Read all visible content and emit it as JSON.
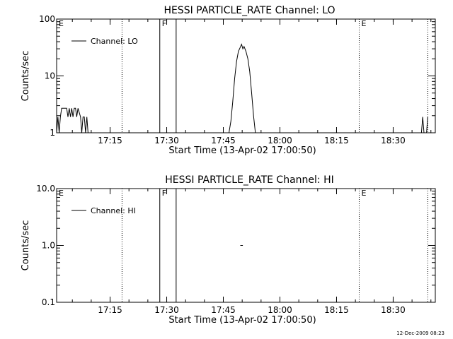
{
  "footer": {
    "stamp": "12-Dec-2009 08:23"
  },
  "chart_data": [
    {
      "type": "line",
      "title": "HESSI PARTICLE_RATE Channel: LO",
      "xlabel": "Start Time (13-Apr-02 17:00:50)",
      "ylabel": "Counts/sec",
      "y_scale": "log",
      "ylim": [
        1,
        100
      ],
      "xlim": [
        "17:00:50",
        "18:41:10"
      ],
      "x_ticks": [
        "17:15",
        "17:30",
        "17:45",
        "18:00",
        "18:15",
        "18:30"
      ],
      "y_ticks": [
        "1",
        "10",
        "100"
      ],
      "legend": {
        "label": "Channel: LO",
        "position": "top-left"
      },
      "markers": [
        {
          "time": "17:00:50",
          "style": "dotted",
          "label": "E"
        },
        {
          "time": "17:18:10",
          "style": "dotted",
          "label": ""
        },
        {
          "time": "17:28:10",
          "style": "solid",
          "label": "F"
        },
        {
          "time": "17:32:30",
          "style": "solid",
          "label": ""
        },
        {
          "time": "18:21:00",
          "style": "dotted",
          "label": "E"
        },
        {
          "time": "18:39:10",
          "style": "dotted",
          "label": ""
        }
      ],
      "series": [
        {
          "name": "Channel: LO",
          "segments": [
            [
              [
                "17:00:50",
                1.0
              ],
              [
                "17:01:10",
                1.9
              ],
              [
                "17:01:30",
                1.0
              ],
              [
                "17:01:50",
                1.9
              ],
              [
                "17:02:10",
                2.7
              ],
              [
                "17:03:30",
                2.7
              ],
              [
                "17:03:50",
                1.9
              ],
              [
                "17:04:10",
                2.7
              ],
              [
                "17:04:30",
                1.9
              ],
              [
                "17:04:50",
                2.7
              ],
              [
                "17:05:10",
                1.9
              ],
              [
                "17:05:30",
                2.7
              ],
              [
                "17:05:50",
                2.7
              ],
              [
                "17:06:10",
                1.9
              ],
              [
                "17:06:30",
                2.7
              ],
              [
                "17:07:10",
                1.9
              ],
              [
                "17:07:30",
                1.0
              ],
              [
                "17:07:50",
                1.9
              ],
              [
                "17:08:10",
                1.9
              ],
              [
                "17:08:30",
                1.0
              ],
              [
                "17:08:50",
                1.9
              ],
              [
                "17:09:10",
                1.0
              ]
            ],
            [
              [
                "17:46:30",
                1.0
              ],
              [
                "17:47:00",
                1.6
              ],
              [
                "17:47:30",
                3.5
              ],
              [
                "17:48:00",
                9.0
              ],
              [
                "17:48:30",
                18.0
              ],
              [
                "17:49:00",
                27.0
              ],
              [
                "17:49:30",
                32.0
              ],
              [
                "17:49:50",
                36.0
              ],
              [
                "17:50:10",
                30.0
              ],
              [
                "17:50:30",
                33.0
              ],
              [
                "17:51:00",
                27.0
              ],
              [
                "17:51:30",
                20.0
              ],
              [
                "17:52:00",
                12.0
              ],
              [
                "17:52:30",
                5.0
              ],
              [
                "17:53:00",
                2.0
              ],
              [
                "17:53:30",
                1.0
              ]
            ],
            [
              [
                "18:37:30",
                1.0
              ],
              [
                "18:37:50",
                1.9
              ],
              [
                "18:38:10",
                1.0
              ]
            ],
            [
              [
                "18:38:50",
                1.0
              ],
              [
                "18:39:10",
                1.9
              ]
            ]
          ]
        }
      ],
      "grid": false
    },
    {
      "type": "line",
      "title": "HESSI PARTICLE_RATE Channel: HI",
      "xlabel": "Start Time (13-Apr-02 17:00:50)",
      "ylabel": "Counts/sec",
      "y_scale": "log",
      "ylim": [
        0.1,
        10
      ],
      "xlim": [
        "17:00:50",
        "18:41:10"
      ],
      "x_ticks": [
        "17:15",
        "17:30",
        "17:45",
        "18:00",
        "18:15",
        "18:30"
      ],
      "y_ticks": [
        "0.1",
        "1.0",
        "10.0"
      ],
      "legend": {
        "label": "Channel: HI",
        "position": "top-left"
      },
      "markers": [
        {
          "time": "17:00:50",
          "style": "dotted",
          "label": "E"
        },
        {
          "time": "17:18:10",
          "style": "dotted",
          "label": ""
        },
        {
          "time": "17:28:10",
          "style": "solid",
          "label": "F"
        },
        {
          "time": "17:32:30",
          "style": "solid",
          "label": ""
        },
        {
          "time": "18:21:00",
          "style": "dotted",
          "label": "E"
        },
        {
          "time": "18:39:10",
          "style": "dotted",
          "label": ""
        }
      ],
      "series": [
        {
          "name": "Channel: HI",
          "segments": [
            [
              [
                "17:49:30",
                1.0
              ],
              [
                "17:50:10",
                1.0
              ]
            ]
          ]
        }
      ],
      "grid": false
    }
  ]
}
